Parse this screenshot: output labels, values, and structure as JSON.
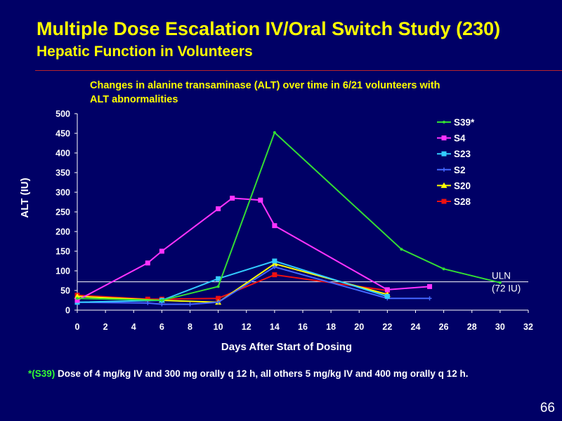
{
  "slide": {
    "title": "Multiple Dose Escalation IV/Oral Switch Study (230)",
    "subtitle": "Hepatic Function in Volunteers",
    "footnote_ref": "*(S39)",
    "footnote_text": " Dose of 4 mg/kg IV and 300 mg orally q 12 h, all others 5 mg/kg IV and 400 mg orally q 12 h.",
    "page_number": "66"
  },
  "chart_data": {
    "type": "line",
    "title": "Changes in alanine transaminase (ALT) over time in 6/21 volunteers with ALT abnormalities",
    "xlabel": "Days After Start of Dosing",
    "ylabel": "ALT (IU)",
    "xlim": [
      0,
      32
    ],
    "ylim": [
      0,
      500
    ],
    "xticks": [
      0,
      2,
      4,
      6,
      8,
      10,
      12,
      14,
      16,
      18,
      20,
      22,
      24,
      26,
      28,
      30,
      32
    ],
    "yticks": [
      0,
      50,
      100,
      150,
      200,
      250,
      300,
      350,
      400,
      450,
      500
    ],
    "grid": false,
    "legend_position": "top-right",
    "reference_line": {
      "y": 72,
      "label_line1": "ULN",
      "label_line2": "(72 IU)"
    },
    "series": [
      {
        "name": "S39*",
        "color": "#33dd33",
        "marker": "dot",
        "points": [
          [
            0,
            30
          ],
          [
            6,
            25
          ],
          [
            10,
            60
          ],
          [
            14,
            452
          ],
          [
            23,
            155
          ],
          [
            26,
            105
          ],
          [
            30,
            70
          ]
        ]
      },
      {
        "name": "S4",
        "color": "#ff33ff",
        "marker": "square",
        "points": [
          [
            0,
            25
          ],
          [
            5,
            120
          ],
          [
            6,
            150
          ],
          [
            10,
            258
          ],
          [
            11,
            285
          ],
          [
            13,
            280
          ],
          [
            14,
            215
          ],
          [
            22,
            52
          ],
          [
            25,
            60
          ]
        ]
      },
      {
        "name": "S23",
        "color": "#33ccff",
        "marker": "square",
        "points": [
          [
            0,
            20
          ],
          [
            6,
            25
          ],
          [
            10,
            80
          ],
          [
            14,
            125
          ],
          [
            22,
            35
          ]
        ]
      },
      {
        "name": "S2",
        "color": "#4466ff",
        "marker": "plus",
        "points": [
          [
            0,
            20
          ],
          [
            5,
            18
          ],
          [
            6,
            15
          ],
          [
            8,
            15
          ],
          [
            10,
            20
          ],
          [
            14,
            110
          ],
          [
            22,
            30
          ],
          [
            25,
            30
          ]
        ]
      },
      {
        "name": "S20",
        "color": "#ffff00",
        "marker": "triangle",
        "points": [
          [
            0,
            35
          ],
          [
            6,
            25
          ],
          [
            10,
            20
          ],
          [
            14,
            118
          ],
          [
            22,
            40
          ]
        ]
      },
      {
        "name": "S28",
        "color": "#ee1111",
        "marker": "square",
        "points": [
          [
            0,
            38
          ],
          [
            5,
            28
          ],
          [
            6,
            28
          ],
          [
            10,
            30
          ],
          [
            14,
            90
          ],
          [
            22,
            50
          ]
        ]
      }
    ]
  }
}
